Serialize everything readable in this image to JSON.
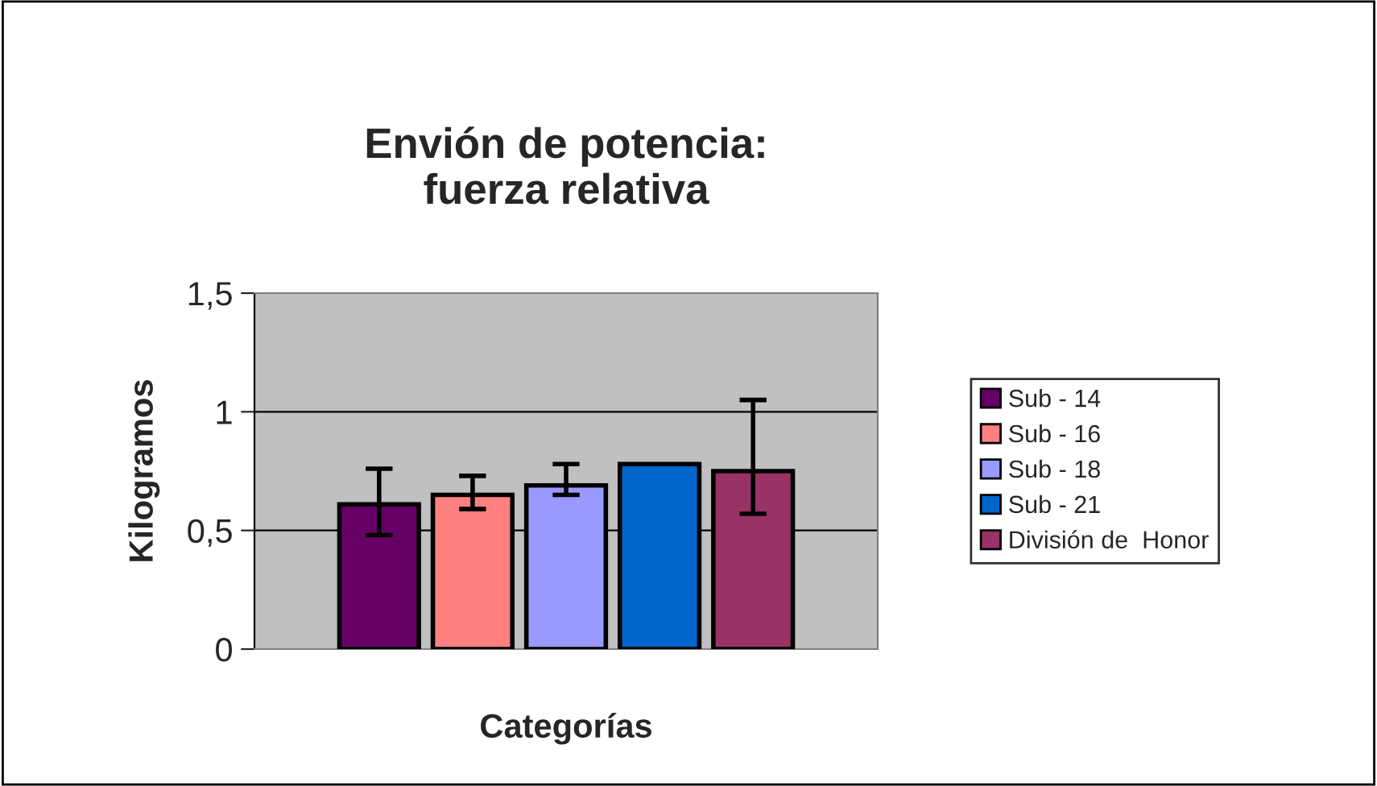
{
  "chart_data": {
    "type": "bar",
    "title": "Envión de potencia:\nfuerza relativa",
    "xlabel": "Categorías",
    "ylabel": "Kilogramos",
    "categories": [
      null
    ],
    "series": [
      {
        "name": "Sub - 14",
        "color": "#660066",
        "values": [
          0.61
        ],
        "errors": [
          [
            0.48,
            0.76
          ]
        ]
      },
      {
        "name": "Sub - 16",
        "color": "#ff8080",
        "values": [
          0.65
        ],
        "errors": [
          [
            0.59,
            0.73
          ]
        ]
      },
      {
        "name": "Sub - 18",
        "color": "#9999ff",
        "values": [
          0.69
        ],
        "errors": [
          [
            0.65,
            0.78
          ]
        ]
      },
      {
        "name": "Sub - 21",
        "color": "#0066cc",
        "values": [
          0.78
        ]
      },
      {
        "name": "División de  Honor",
        "color": "#993366",
        "values": [
          0.75
        ],
        "errors": [
          [
            0.57,
            1.05
          ]
        ]
      }
    ],
    "ylim": [
      0,
      1.5
    ],
    "yticks": [
      {
        "value": 0,
        "label": "0"
      },
      {
        "value": 0.5,
        "label": "0,5"
      },
      {
        "value": 1,
        "label": "1"
      },
      {
        "value": 1.5,
        "label": "1,5"
      }
    ],
    "grid": "y",
    "legend": "right"
  }
}
